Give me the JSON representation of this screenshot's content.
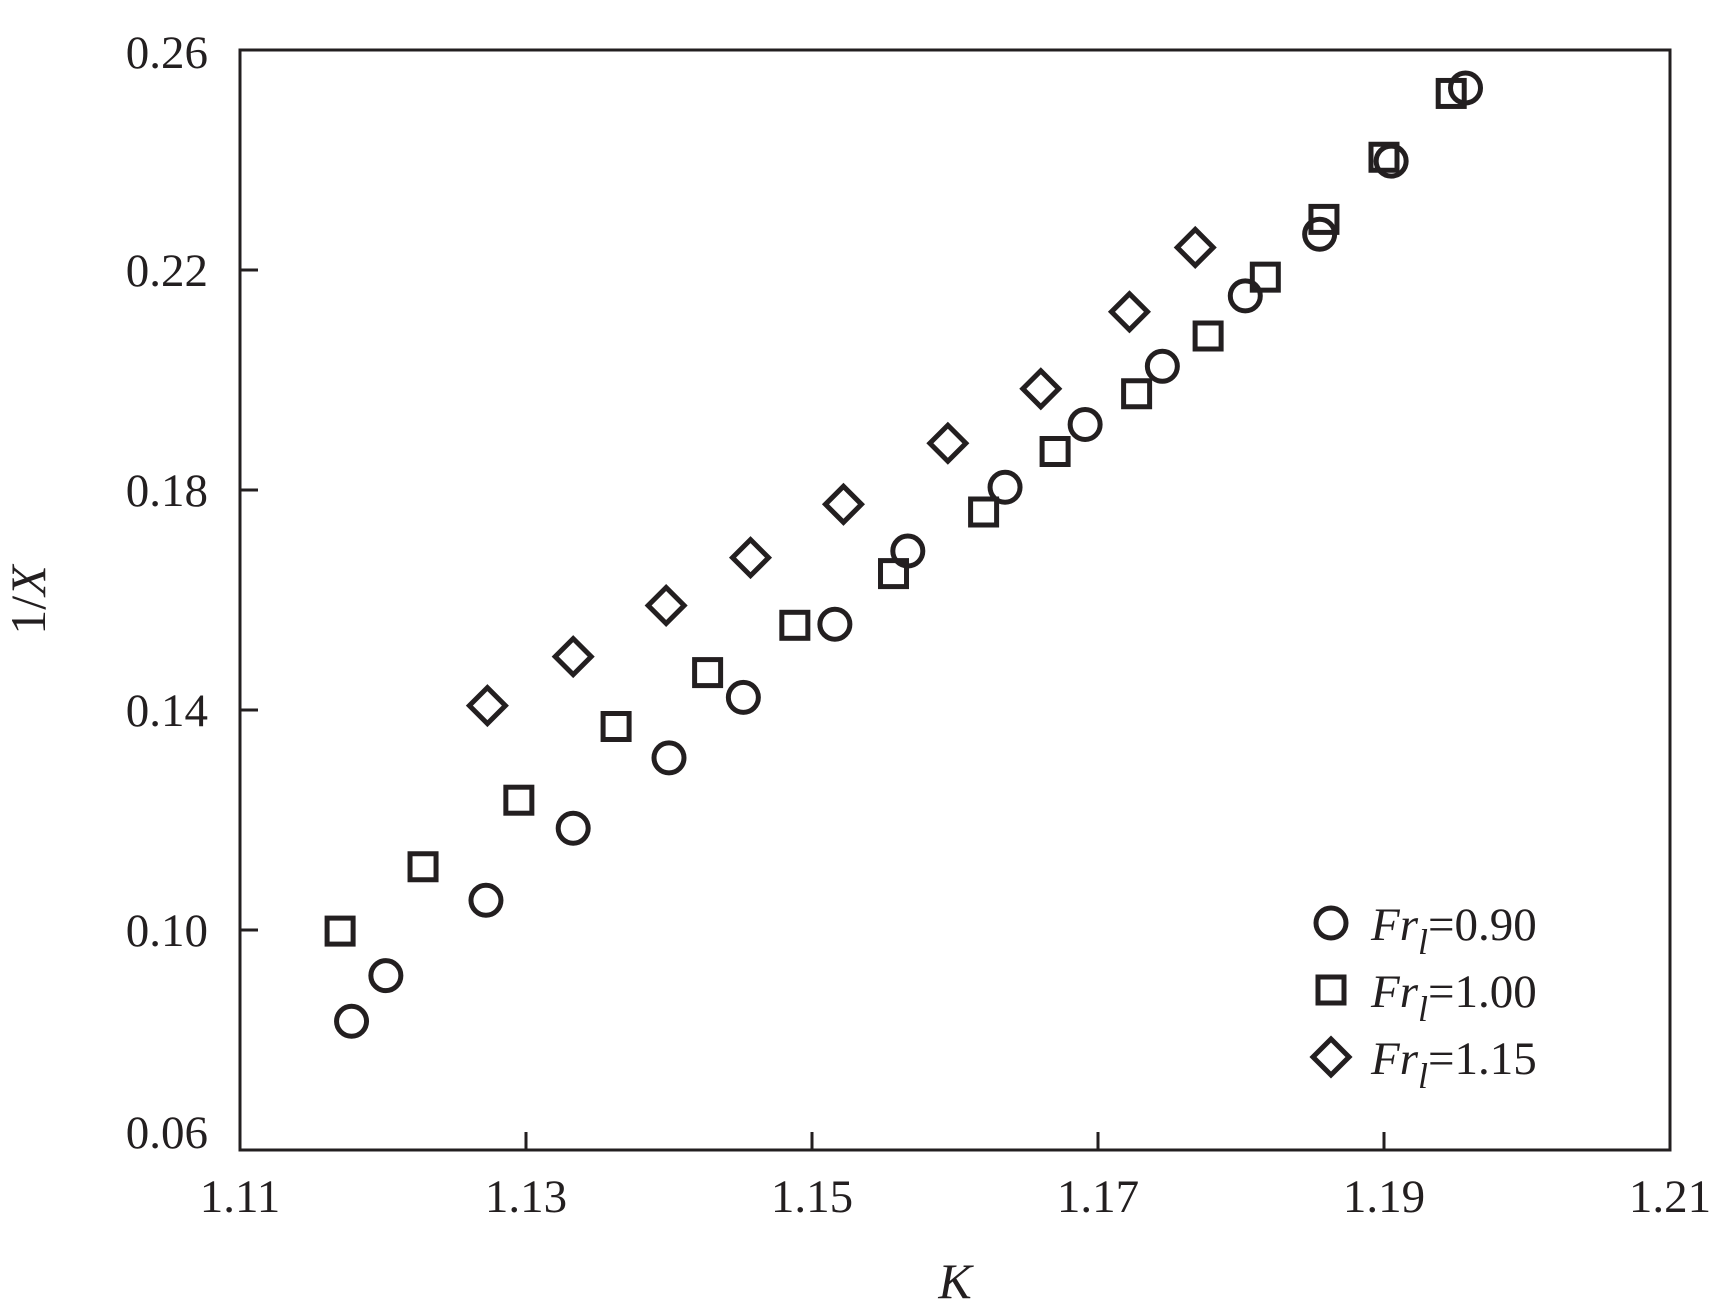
{
  "chart_data": {
    "type": "scatter",
    "title": "",
    "xlabel": "K",
    "ylabel_number": "1/",
    "ylabel_symbol": "X",
    "xlim": [
      1.11,
      1.21
    ],
    "ylim": [
      0.06,
      0.26
    ],
    "x_ticks": [
      "1.11",
      "1.13",
      "1.15",
      "1.17",
      "1.19",
      "1.21"
    ],
    "y_ticks": [
      "0.06",
      "0.10",
      "0.14",
      "0.18",
      "0.22",
      "0.26"
    ],
    "grid": false,
    "legend_position": "bottom-right",
    "series": [
      {
        "name": "Fr_l=0.90",
        "legend_symbol": "Fr",
        "legend_subscript": "l",
        "legend_value": "=0.90",
        "marker": "circle",
        "color": "#231f20",
        "points": [
          [
            1.1178,
            0.0834
          ],
          [
            1.1202,
            0.0917
          ],
          [
            1.1272,
            0.1054
          ],
          [
            1.1333,
            0.1185
          ],
          [
            1.14,
            0.1313
          ],
          [
            1.1452,
            0.1423
          ],
          [
            1.1516,
            0.1556
          ],
          [
            1.1567,
            0.1689
          ],
          [
            1.1635,
            0.1805
          ],
          [
            1.1691,
            0.1919
          ],
          [
            1.1745,
            0.2025
          ],
          [
            1.1803,
            0.2153
          ],
          [
            1.1855,
            0.2265
          ],
          [
            1.1905,
            0.2398
          ],
          [
            1.1957,
            0.2531
          ]
        ]
      },
      {
        "name": "Fr_l=1.00",
        "legend_symbol": "Fr",
        "legend_subscript": "l",
        "legend_value": "=1.00",
        "marker": "square",
        "color": "#231f20",
        "points": [
          [
            1.117,
            0.0998
          ],
          [
            1.1228,
            0.1115
          ],
          [
            1.1295,
            0.1236
          ],
          [
            1.1363,
            0.137
          ],
          [
            1.1427,
            0.1468
          ],
          [
            1.1488,
            0.1554
          ],
          [
            1.1557,
            0.1648
          ],
          [
            1.162,
            0.176
          ],
          [
            1.167,
            0.187
          ],
          [
            1.1727,
            0.1975
          ],
          [
            1.1777,
            0.208
          ],
          [
            1.1817,
            0.2187
          ],
          [
            1.1858,
            0.2292
          ],
          [
            1.19,
            0.2405
          ],
          [
            1.1947,
            0.2521
          ]
        ]
      },
      {
        "name": "Fr_l=1.15",
        "legend_symbol": "Fr",
        "legend_subscript": "l",
        "legend_value": "=1.15",
        "marker": "diamond",
        "color": "#231f20",
        "points": [
          [
            1.1273,
            0.1408
          ],
          [
            1.1333,
            0.1497
          ],
          [
            1.1398,
            0.159
          ],
          [
            1.1457,
            0.1677
          ],
          [
            1.1522,
            0.1774
          ],
          [
            1.1595,
            0.1885
          ],
          [
            1.166,
            0.1984
          ],
          [
            1.1722,
            0.2124
          ],
          [
            1.1768,
            0.2241
          ]
        ]
      }
    ]
  }
}
